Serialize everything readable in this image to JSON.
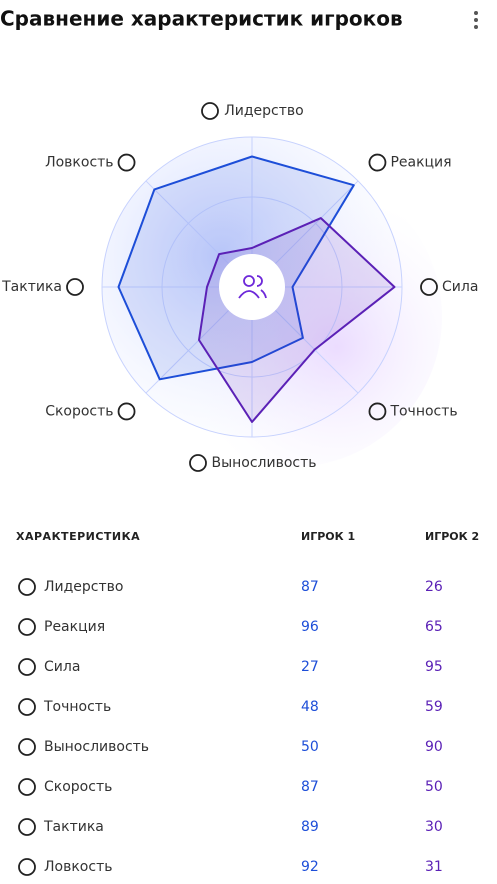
{
  "title": "Сравнение характеристик игроков",
  "chart_data": {
    "type": "radar",
    "categories": [
      "Лидерство",
      "Реакция",
      "Сила",
      "Точность",
      "Выносливость",
      "Скорость",
      "Тактика",
      "Ловкость"
    ],
    "rlim": [
      0,
      100
    ],
    "series": [
      {
        "name": "ИГРОК 1",
        "color": "#1d4ed8",
        "values": [
          87,
          96,
          27,
          48,
          50,
          87,
          89,
          92
        ]
      },
      {
        "name": "ИГРОК 2",
        "color": "#5b21b6",
        "values": [
          26,
          65,
          95,
          59,
          90,
          50,
          30,
          31
        ]
      }
    ]
  },
  "table": {
    "header": "ХАРАКТЕРИСТИКА"
  }
}
